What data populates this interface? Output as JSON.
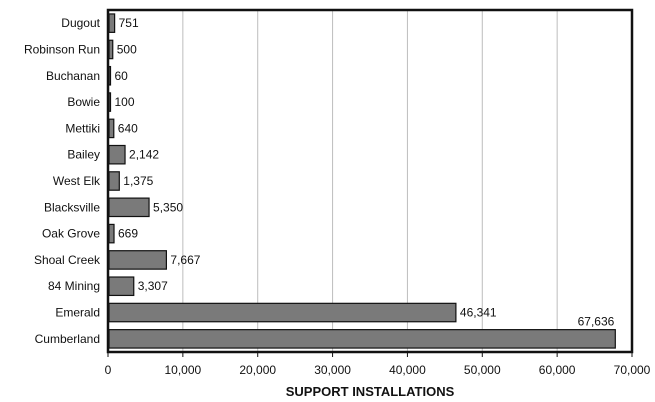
{
  "chart_data": {
    "type": "bar",
    "orientation": "horizontal",
    "categories": [
      "Dugout",
      "Robinson Run",
      "Buchanan",
      "Bowie",
      "Mettiki",
      "Bailey",
      "West Elk",
      "Blacksville",
      "Oak Grove",
      "Shoal Creek",
      "84 Mining",
      "Emerald",
      "Cumberland"
    ],
    "values": [
      751,
      500,
      60,
      100,
      640,
      2142,
      1375,
      5350,
      669,
      7667,
      3307,
      46341,
      67636
    ],
    "value_labels": [
      "751",
      "500",
      "60",
      "100",
      "640",
      "2,142",
      "1,375",
      "5,350",
      "669",
      "7,667",
      "3,307",
      "46,341",
      "67,636"
    ],
    "xlabel": "SUPPORT INSTALLATIONS",
    "xlim": [
      0,
      70000
    ],
    "xticks": [
      0,
      10000,
      20000,
      30000,
      40000,
      50000,
      60000,
      70000
    ],
    "xtick_labels": [
      "0",
      "10,000",
      "20,000",
      "30,000",
      "40,000",
      "50,000",
      "60,000",
      "70,000"
    ],
    "grid": true,
    "bar_color": "#7a7a7a"
  }
}
